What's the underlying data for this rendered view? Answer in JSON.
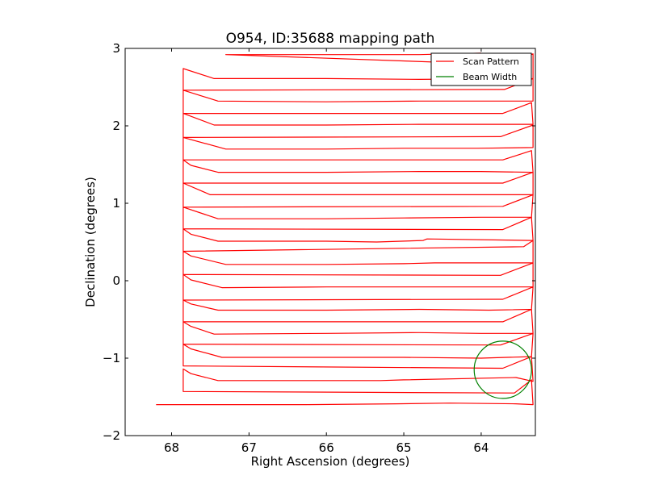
{
  "chart_data": {
    "type": "line",
    "title": "O954, ID:35688 mapping path",
    "xlabel": "Right Ascension (degrees)",
    "ylabel": "Declination (degrees)",
    "xlim": [
      68.6,
      63.3
    ],
    "ylim": [
      -2,
      3
    ],
    "x_ticks": [
      68,
      67,
      66,
      65,
      64
    ],
    "x_tick_labels": [
      "68",
      "67",
      "66",
      "65",
      "64"
    ],
    "y_ticks": [
      -2,
      -1,
      0,
      1,
      2,
      3
    ],
    "y_tick_labels": [
      "−2",
      "−1",
      "0",
      "1",
      "2",
      "3"
    ],
    "grid": false,
    "legend_position": "top-right",
    "colors": {
      "scan": "#ff0000",
      "beam": "#008000",
      "axes": "#000000"
    },
    "series": [
      {
        "name": "Scan Pattern",
        "points": [
          [
            68.2,
            -1.6
          ],
          [
            67.35,
            -1.6
          ],
          [
            66.25,
            -1.6
          ],
          [
            65.1,
            -1.59
          ],
          [
            64.4,
            -1.58
          ],
          [
            63.55,
            -1.59
          ],
          [
            63.33,
            -1.6
          ],
          [
            63.35,
            -1.28
          ],
          [
            63.57,
            -1.45
          ],
          [
            67.85,
            -1.43
          ],
          [
            67.85,
            -1.14
          ],
          [
            67.75,
            -1.2
          ],
          [
            67.4,
            -1.29
          ],
          [
            66.25,
            -1.29
          ],
          [
            65.3,
            -1.29
          ],
          [
            65.0,
            -1.28
          ],
          [
            63.55,
            -1.25
          ],
          [
            63.33,
            -1.3
          ],
          [
            63.35,
            -0.98
          ],
          [
            63.72,
            -1.13
          ],
          [
            67.85,
            -1.1
          ],
          [
            67.85,
            -0.82
          ],
          [
            67.75,
            -0.88
          ],
          [
            67.35,
            -0.99
          ],
          [
            66.0,
            -0.99
          ],
          [
            65.0,
            -0.99
          ],
          [
            64.0,
            -1.0
          ],
          [
            63.35,
            -0.98
          ],
          [
            63.33,
            -0.68
          ],
          [
            63.75,
            -0.83
          ],
          [
            67.85,
            -0.82
          ],
          [
            67.85,
            -0.53
          ],
          [
            67.75,
            -0.59
          ],
          [
            67.45,
            -0.69
          ],
          [
            66.0,
            -0.68
          ],
          [
            64.8,
            -0.67
          ],
          [
            64.0,
            -0.68
          ],
          [
            63.33,
            -0.68
          ],
          [
            63.35,
            -0.37
          ],
          [
            63.72,
            -0.53
          ],
          [
            67.85,
            -0.53
          ],
          [
            67.85,
            -0.25
          ],
          [
            67.75,
            -0.3
          ],
          [
            67.4,
            -0.38
          ],
          [
            66.0,
            -0.38
          ],
          [
            64.8,
            -0.37
          ],
          [
            63.9,
            -0.38
          ],
          [
            63.35,
            -0.37
          ],
          [
            63.33,
            -0.08
          ],
          [
            63.72,
            -0.24
          ],
          [
            67.85,
            -0.25
          ],
          [
            67.85,
            0.08
          ],
          [
            67.75,
            0.01
          ],
          [
            67.35,
            -0.09
          ],
          [
            66.0,
            -0.08
          ],
          [
            65.0,
            -0.08
          ],
          [
            64.0,
            -0.08
          ],
          [
            63.33,
            -0.08
          ],
          [
            63.33,
            0.23
          ],
          [
            63.75,
            0.07
          ],
          [
            67.85,
            0.08
          ],
          [
            67.85,
            0.38
          ],
          [
            67.75,
            0.32
          ],
          [
            67.3,
            0.21
          ],
          [
            66.0,
            0.21
          ],
          [
            65.0,
            0.22
          ],
          [
            64.6,
            0.23
          ],
          [
            63.75,
            0.23
          ],
          [
            63.33,
            0.23
          ],
          [
            63.33,
            0.52
          ],
          [
            63.45,
            0.44
          ],
          [
            67.85,
            0.38
          ],
          [
            67.85,
            0.67
          ],
          [
            67.75,
            0.6
          ],
          [
            67.4,
            0.51
          ],
          [
            66.0,
            0.51
          ],
          [
            65.35,
            0.5
          ],
          [
            64.75,
            0.52
          ],
          [
            64.7,
            0.54
          ],
          [
            63.33,
            0.52
          ],
          [
            63.35,
            0.82
          ],
          [
            63.72,
            0.66
          ],
          [
            67.85,
            0.67
          ],
          [
            67.85,
            0.95
          ],
          [
            67.4,
            0.8
          ],
          [
            66.0,
            0.8
          ],
          [
            65.0,
            0.81
          ],
          [
            64.0,
            0.82
          ],
          [
            63.35,
            0.82
          ],
          [
            63.33,
            1.11
          ],
          [
            63.72,
            0.96
          ],
          [
            67.85,
            0.95
          ],
          [
            67.85,
            1.26
          ],
          [
            67.5,
            1.11
          ],
          [
            66.0,
            1.11
          ],
          [
            65.0,
            1.11
          ],
          [
            64.0,
            1.11
          ],
          [
            63.33,
            1.11
          ],
          [
            63.33,
            1.4
          ],
          [
            63.72,
            1.26
          ],
          [
            67.85,
            1.26
          ],
          [
            67.85,
            1.56
          ],
          [
            67.75,
            1.49
          ],
          [
            67.4,
            1.4
          ],
          [
            66.0,
            1.4
          ],
          [
            64.8,
            1.41
          ],
          [
            64.0,
            1.41
          ],
          [
            63.33,
            1.4
          ],
          [
            63.35,
            1.68
          ],
          [
            63.72,
            1.56
          ],
          [
            67.85,
            1.56
          ],
          [
            67.85,
            1.85
          ],
          [
            67.3,
            1.7
          ],
          [
            66.0,
            1.7
          ],
          [
            65.0,
            1.71
          ],
          [
            64.05,
            1.71
          ],
          [
            63.33,
            1.72
          ],
          [
            63.33,
            2.01
          ],
          [
            63.75,
            1.86
          ],
          [
            67.85,
            1.85
          ],
          [
            67.85,
            2.16
          ],
          [
            67.45,
            2.01
          ],
          [
            66.0,
            2.01
          ],
          [
            64.8,
            2.02
          ],
          [
            63.33,
            2.02
          ],
          [
            63.35,
            2.3
          ],
          [
            63.72,
            2.16
          ],
          [
            67.85,
            2.16
          ],
          [
            67.85,
            2.46
          ],
          [
            67.4,
            2.32
          ],
          [
            66.0,
            2.31
          ],
          [
            64.8,
            2.32
          ],
          [
            63.33,
            2.32
          ],
          [
            63.33,
            2.61
          ],
          [
            63.7,
            2.47
          ],
          [
            67.85,
            2.46
          ],
          [
            67.85,
            2.74
          ],
          [
            67.45,
            2.61
          ],
          [
            66.0,
            2.61
          ],
          [
            64.8,
            2.6
          ],
          [
            63.33,
            2.61
          ],
          [
            63.33,
            2.93
          ],
          [
            63.65,
            2.79
          ],
          [
            67.3,
            2.92
          ],
          [
            66.0,
            2.92
          ],
          [
            64.8,
            2.92
          ],
          [
            64.0,
            2.94
          ]
        ]
      },
      {
        "name": "Beam Width",
        "center": [
          63.72,
          -1.15
        ],
        "radius": 0.37
      }
    ]
  }
}
